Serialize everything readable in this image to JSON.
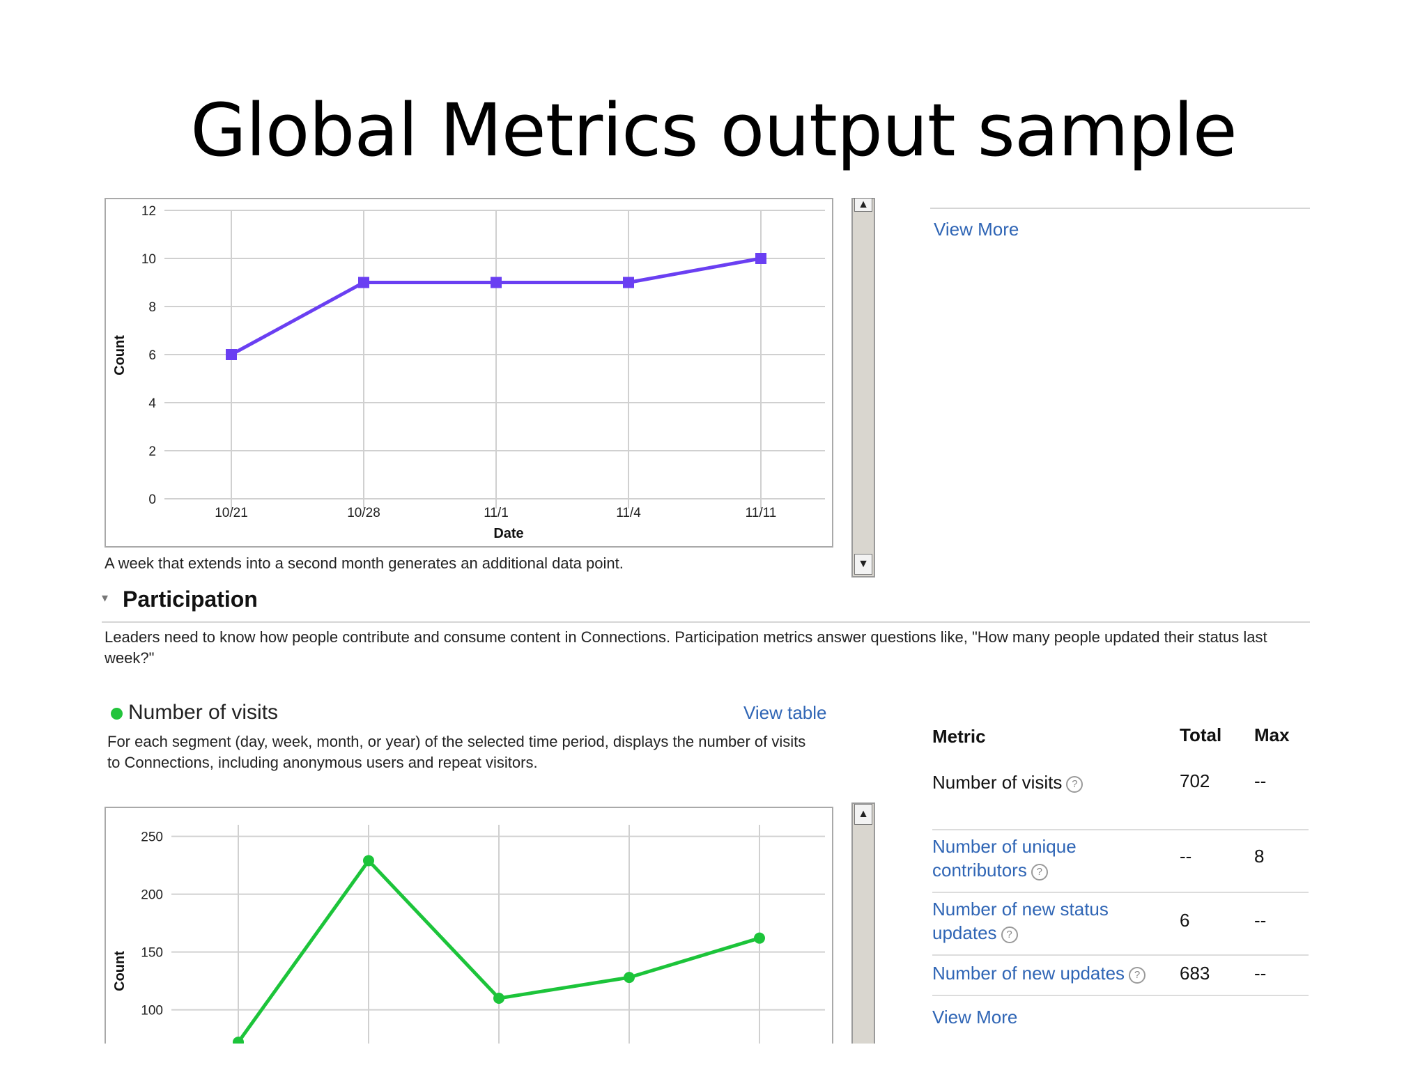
{
  "slide": {
    "title": "Global Metrics output sample"
  },
  "top_panel": {
    "view_more": "View More",
    "caption": "A week that extends into a second month generates an additional data point."
  },
  "participation": {
    "collapse_glyph": "▾",
    "heading": "Participation",
    "description": "Leaders need to know how people contribute and consume content in Connections. Participation metrics answer questions like, \"How many people updated their status last week?\""
  },
  "visits_section": {
    "bullet_color": "#22c43b",
    "title": "Number of visits",
    "view_table": "View table",
    "description": "For each segment (day, week, month, or year) of the selected time period, displays the number of visits to Connections, including anonymous users and repeat visitors."
  },
  "metrics_table": {
    "headers": {
      "metric": "Metric",
      "total": "Total",
      "max": "Max"
    },
    "help_glyph": "?",
    "rows": [
      {
        "metric": "Number of visits",
        "total": "702",
        "max": "--",
        "is_link": false
      },
      {
        "metric": "Number of unique contributors",
        "total": "--",
        "max": "8",
        "is_link": true
      },
      {
        "metric": "Number of new status updates",
        "total": "6",
        "max": "--",
        "is_link": true
      },
      {
        "metric": "Number of new updates",
        "total": "683",
        "max": "--",
        "is_link": true
      }
    ],
    "view_more": "View More"
  },
  "scroll_glyphs": {
    "up": "▲",
    "down": "▼"
  },
  "chart_data": [
    {
      "type": "line",
      "color": "#6a3ff2",
      "marker": "square",
      "x": [
        "10/21",
        "10/28",
        "11/1",
        "11/4",
        "11/11"
      ],
      "series": [
        {
          "values": [
            6,
            9,
            9,
            9,
            10
          ]
        }
      ],
      "xlabel": "Date",
      "ylabel": "Count",
      "ylim": [
        0,
        12
      ],
      "yticks": [
        0,
        2,
        4,
        6,
        8,
        10,
        12
      ],
      "grid": true
    },
    {
      "type": "line",
      "color": "#1cc43a",
      "marker": "circle",
      "x_count": 5,
      "series": [
        {
          "values": [
            72,
            229,
            110,
            128,
            162
          ]
        }
      ],
      "ylabel": "Count",
      "ylim": [
        60,
        260
      ],
      "yticks": [
        100,
        150,
        200,
        250
      ],
      "grid": true
    }
  ]
}
